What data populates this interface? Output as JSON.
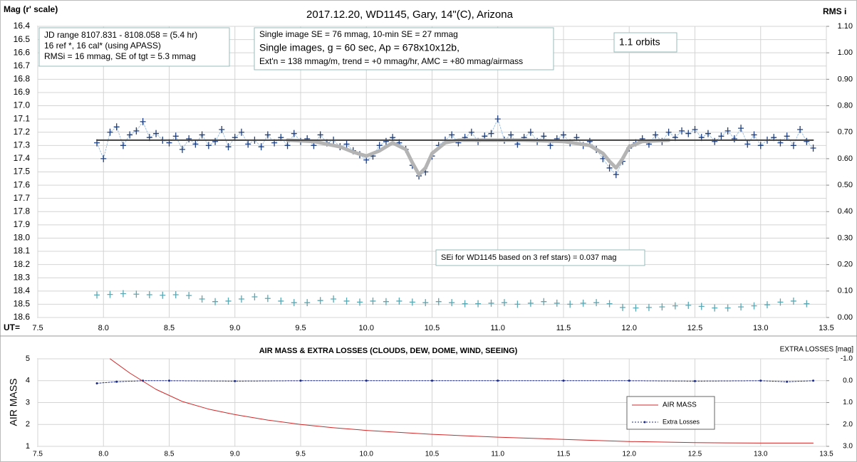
{
  "chart_data": [
    {
      "type": "line",
      "title": "2017.12.20,  WD1145, Gary, 14\"(C), Arizona",
      "ylabel": "Mag (r' scale)",
      "y2label": "RMS i",
      "xlabel": "UT=",
      "xlim": [
        7.5,
        13.5
      ],
      "xticks": [
        7.5,
        {
          "value": 8,
          "label": "8.0"
        },
        8.5,
        {
          "value": 9,
          "label": "9.0"
        },
        9.5,
        {
          "value": 10,
          "label": "10.0"
        },
        10.5,
        {
          "value": 11,
          "label": "11.0"
        },
        11.5,
        {
          "value": 12,
          "label": "12.0"
        },
        12.5,
        {
          "value": 13,
          "label": "13.0"
        },
        13.5
      ],
      "ylim": [
        18.6,
        16.4
      ],
      "yticks": [
        16.4,
        16.5,
        16.6,
        16.7,
        16.8,
        16.9,
        {
          "value": 17,
          "label": "17.0"
        },
        17.1,
        17.2,
        17.3,
        17.4,
        17.5,
        17.6,
        17.7,
        17.8,
        17.9,
        {
          "value": 18,
          "label": "18.0"
        },
        18.1,
        18.2,
        18.3,
        18.4,
        18.5,
        18.6
      ],
      "y2lim": [
        0,
        1.1
      ],
      "y2ticks": [
        {
          "value": 0,
          "label": "0.00"
        },
        {
          "value": 0.1,
          "label": "0.10"
        },
        {
          "value": 0.2,
          "label": "0.20"
        },
        {
          "value": 0.3,
          "label": "0.30"
        },
        {
          "value": 0.4,
          "label": "0.40"
        },
        {
          "value": 0.5,
          "label": "0.50"
        },
        {
          "value": 0.6,
          "label": "0.60"
        },
        {
          "value": 0.7,
          "label": "0.70"
        },
        {
          "value": 0.8,
          "label": "0.80"
        },
        {
          "value": 0.9,
          "label": "0.90"
        },
        {
          "value": 1,
          "label": "1.00"
        },
        {
          "value": 1.1,
          "label": "1.10"
        }
      ],
      "grid": true,
      "annotations": [
        {
          "lines": [
            "JD range  8107.831 - 8108.058  = (5.4 hr)",
            "16 ref *, 16 cal* (using APASS)",
            "RMSi = 16 mmag, SE of tgt = 5.3 mmag"
          ]
        },
        {
          "lines": [
            "Single image SE = 76 mmag, 10-min SE = 27 mmag",
            "Single images, g = 60 sec, Ap = 678x10x12b,",
            "Ext'n = 138 mmag/m, trend = +0 mmag/hr, AMC = +80 mmag/airmass"
          ]
        },
        {
          "lines": [
            "1.1 orbits"
          ]
        },
        {
          "lines": [
            "SEi for WD1145 based on 3 ref stars) = 0.037 mag"
          ]
        }
      ],
      "series": [
        {
          "color": "#1f3f7f",
          "marker": "plus",
          "line": "dotted",
          "line_color": "#9dbfe0",
          "width": 1,
          "x": [
            7.95,
            8.0,
            8.05,
            8.1,
            8.15,
            8.2,
            8.25,
            8.3,
            8.35,
            8.4,
            8.45,
            8.5,
            8.55,
            8.6,
            8.65,
            8.7,
            8.75,
            8.8,
            8.85,
            8.9,
            8.95,
            9.0,
            9.05,
            9.1,
            9.15,
            9.2,
            9.25,
            9.3,
            9.35,
            9.4,
            9.45,
            9.5,
            9.55,
            9.6,
            9.65,
            9.7,
            9.75,
            9.8,
            9.85,
            9.9,
            9.95,
            10.0,
            10.05,
            10.1,
            10.15,
            10.2,
            10.25,
            10.3,
            10.35,
            10.4,
            10.45,
            10.5,
            10.55,
            10.6,
            10.65,
            10.7,
            10.75,
            10.8,
            10.85,
            10.9,
            10.95,
            11.0,
            11.05,
            11.1,
            11.15,
            11.2,
            11.25,
            11.3,
            11.35,
            11.4,
            11.45,
            11.5,
            11.55,
            11.6,
            11.65,
            11.7,
            11.75,
            11.8,
            11.85,
            11.9,
            11.95,
            12.0,
            12.05,
            12.1,
            12.15,
            12.2,
            12.25,
            12.3,
            12.35,
            12.4,
            12.45,
            12.5,
            12.55,
            12.6,
            12.65,
            12.7,
            12.75,
            12.8,
            12.85,
            12.9,
            12.95,
            13.0,
            13.05,
            13.1,
            13.15,
            13.2,
            13.25,
            13.3,
            13.35,
            13.4
          ],
          "values": [
            17.28,
            17.4,
            17.2,
            17.16,
            17.3,
            17.22,
            17.19,
            17.12,
            17.24,
            17.21,
            17.26,
            17.28,
            17.23,
            17.33,
            17.25,
            17.29,
            17.22,
            17.3,
            17.27,
            17.18,
            17.31,
            17.24,
            17.2,
            17.29,
            17.26,
            17.31,
            17.22,
            17.28,
            17.24,
            17.3,
            17.21,
            17.27,
            17.25,
            17.3,
            17.22,
            17.28,
            17.26,
            17.31,
            17.29,
            17.34,
            17.37,
            17.41,
            17.38,
            17.3,
            17.27,
            17.24,
            17.28,
            17.33,
            17.45,
            17.53,
            17.5,
            17.38,
            17.3,
            17.26,
            17.22,
            17.28,
            17.24,
            17.2,
            17.27,
            17.23,
            17.21,
            17.1,
            17.26,
            17.22,
            17.29,
            17.24,
            17.2,
            17.27,
            17.23,
            17.3,
            17.25,
            17.22,
            17.28,
            17.24,
            17.3,
            17.27,
            17.33,
            17.4,
            17.47,
            17.52,
            17.42,
            17.32,
            17.28,
            17.25,
            17.29,
            17.22,
            17.27,
            17.2,
            17.24,
            17.19,
            17.21,
            17.18,
            17.24,
            17.21,
            17.27,
            17.23,
            17.19,
            17.25,
            17.17,
            17.29,
            17.22,
            17.3,
            17.26,
            17.24,
            17.28,
            17.23,
            17.3,
            17.18,
            17.27,
            17.32
          ]
        },
        {
          "color": "#b4b4b4",
          "line": "solid",
          "width": 5,
          "x": [
            9.4,
            9.6,
            9.8,
            9.9,
            10.0,
            10.1,
            10.2,
            10.3,
            10.35,
            10.4,
            10.45,
            10.5,
            10.6,
            10.7,
            10.9,
            11.2,
            11.5,
            11.7,
            11.8,
            11.85,
            11.9,
            11.95,
            12.0,
            12.1,
            12.3
          ],
          "values": [
            17.26,
            17.27,
            17.31,
            17.35,
            17.38,
            17.34,
            17.28,
            17.33,
            17.43,
            17.52,
            17.47,
            17.36,
            17.28,
            17.26,
            17.26,
            17.26,
            17.27,
            17.3,
            17.36,
            17.42,
            17.47,
            17.4,
            17.31,
            17.27,
            17.26
          ]
        },
        {
          "color": "#404040",
          "line": "solid",
          "width": 2,
          "x": [
            7.95,
            13.4
          ],
          "values": [
            17.26,
            17.26
          ]
        },
        {
          "color": "#5aa8b4",
          "marker": "plus",
          "axis": "y2",
          "x": [
            7.95,
            8.05,
            8.15,
            8.25,
            8.35,
            8.45,
            8.55,
            8.65,
            8.75,
            8.85,
            8.95,
            9.05,
            9.15,
            9.25,
            9.35,
            9.45,
            9.55,
            9.65,
            9.75,
            9.85,
            9.95,
            10.05,
            10.15,
            10.25,
            10.35,
            10.45,
            10.55,
            10.65,
            10.75,
            10.85,
            10.95,
            11.05,
            11.15,
            11.25,
            11.35,
            11.45,
            11.55,
            11.65,
            11.75,
            11.85,
            11.95,
            12.05,
            12.15,
            12.25,
            12.35,
            12.45,
            12.55,
            12.65,
            12.75,
            12.85,
            12.95,
            13.05,
            13.15,
            13.25,
            13.35
          ],
          "values": [
            0.085,
            0.087,
            0.09,
            0.088,
            0.086,
            0.084,
            0.086,
            0.083,
            0.07,
            0.06,
            0.062,
            0.07,
            0.078,
            0.072,
            0.062,
            0.056,
            0.056,
            0.064,
            0.07,
            0.062,
            0.058,
            0.062,
            0.06,
            0.062,
            0.058,
            0.056,
            0.06,
            0.056,
            0.052,
            0.052,
            0.054,
            0.056,
            0.05,
            0.054,
            0.06,
            0.054,
            0.05,
            0.054,
            0.056,
            0.052,
            0.038,
            0.036,
            0.038,
            0.04,
            0.044,
            0.046,
            0.042,
            0.036,
            0.036,
            0.04,
            0.044,
            0.048,
            0.058,
            0.062,
            0.052
          ]
        }
      ]
    },
    {
      "type": "line",
      "title": "AIR MASS & EXTRA LOSSES (CLOUDS, DEW, DOME, WIND, SEEING)",
      "ylabel": "AIR MASS",
      "y2label": "EXTRA LOSSES [mag]",
      "xlim": [
        7.5,
        13.5
      ],
      "xticks": [
        7.5,
        {
          "value": 8,
          "label": "8.0"
        },
        8.5,
        {
          "value": 9,
          "label": "9.0"
        },
        9.5,
        {
          "value": 10,
          "label": "10.0"
        },
        10.5,
        {
          "value": 11,
          "label": "11.0"
        },
        11.5,
        {
          "value": 12,
          "label": "12.0"
        },
        12.5,
        {
          "value": 13,
          "label": "13.0"
        },
        13.5
      ],
      "ylim": [
        1,
        5
      ],
      "yticks": [
        1,
        2,
        3,
        4,
        5
      ],
      "y2lim": [
        3,
        -1
      ],
      "y2ticks": [
        {
          "value": -1,
          "label": "-1.0"
        },
        {
          "value": 0,
          "label": "0.0"
        },
        {
          "value": 1,
          "label": "1.0"
        },
        {
          "value": 2,
          "label": "2.0"
        },
        {
          "value": 3,
          "label": "3.0"
        }
      ],
      "grid": true,
      "legend": "lower right",
      "series": [
        {
          "name": "AIR MASS",
          "color": "#d02828",
          "line": "solid",
          "width": 1,
          "x": [
            8.05,
            8.2,
            8.4,
            8.6,
            8.8,
            9.0,
            9.25,
            9.5,
            9.75,
            10.0,
            10.5,
            11.0,
            11.5,
            12.0,
            12.5,
            13.0,
            13.4
          ],
          "values": [
            5.0,
            4.35,
            3.6,
            3.05,
            2.7,
            2.45,
            2.2,
            2.0,
            1.85,
            1.73,
            1.55,
            1.42,
            1.32,
            1.22,
            1.17,
            1.15,
            1.15
          ]
        },
        {
          "name": "Extra Losses",
          "color": "#1a2a8a",
          "line": "dotted",
          "marker": "dot",
          "width": 1,
          "axis": "y2",
          "x": [
            7.95,
            8.1,
            8.3,
            8.5,
            9.0,
            9.5,
            10.0,
            10.5,
            11.0,
            11.5,
            12.0,
            12.5,
            13.0,
            13.2,
            13.4
          ],
          "values": [
            0.12,
            0.05,
            0.0,
            0.0,
            0.02,
            0.0,
            0.0,
            0.0,
            0.0,
            0.0,
            0.0,
            0.02,
            0.0,
            0.05,
            0.0
          ]
        }
      ]
    }
  ]
}
